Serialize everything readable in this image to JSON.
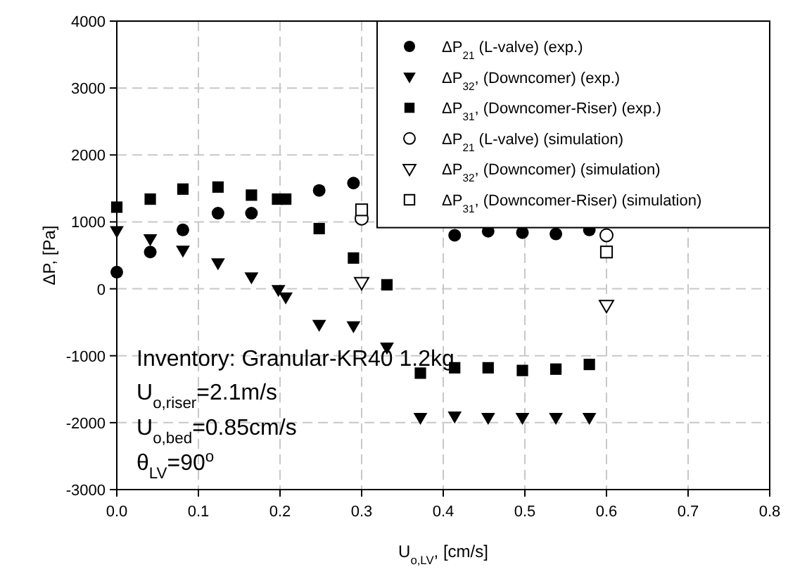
{
  "chart_data": {
    "type": "scatter",
    "xlabel": "U$_{o,LV}$, [cm/s]",
    "ylabel": "ΔP, [Pa]",
    "xlim": [
      0,
      0.8
    ],
    "xticks": [
      {
        "value": 0,
        "label": "0.0"
      },
      0.1,
      0.2,
      0.3,
      0.4,
      0.5,
      0.6,
      0.7,
      0.8
    ],
    "ylim": [
      -3000,
      4000
    ],
    "yticks": [
      -3000,
      -2000,
      -1000,
      0,
      1000,
      2000,
      3000,
      4000
    ],
    "grid": true,
    "legend": "top right",
    "annotations": [
      "Inventory: Granular-KR40 1.2kg",
      "U$_{o,riser}$=2.1m/s",
      "U$_{o,bed}$=0.85cm/s",
      "θ$_{LV}$=90$^{o}$"
    ],
    "series": [
      {
        "name": "ΔP$_{21}$ (L-valve) (exp.)",
        "color": "#000000",
        "marker": "circle",
        "x": [
          0,
          0.041,
          0.081,
          0.124,
          0.165,
          0.248,
          0.29,
          0.414,
          0.455,
          0.497,
          0.538,
          0.579
        ],
        "values": [
          250,
          550,
          880,
          1130,
          1130,
          1470,
          1580,
          800,
          860,
          840,
          820,
          880
        ]
      },
      {
        "name": "ΔP$_{32}$, (Downcomer) (exp.)",
        "color": "#000000",
        "marker": "triangle",
        "x": [
          0,
          0.041,
          0.081,
          0.124,
          0.165,
          0.198,
          0.207,
          0.248,
          0.29,
          0.331,
          0.372,
          0.414,
          0.455,
          0.497,
          0.538,
          0.579
        ],
        "values": [
          860,
          740,
          570,
          380,
          170,
          -20,
          -130,
          -540,
          -560,
          -880,
          -1930,
          -1910,
          -1930,
          -1930,
          -1930,
          -1930
        ]
      },
      {
        "name": "ΔP$_{31}$, (Downcomer-Riser) (exp.)",
        "color": "#000000",
        "marker": "square",
        "x": [
          0,
          0.041,
          0.081,
          0.124,
          0.165,
          0.197,
          0.207,
          0.248,
          0.29,
          0.331,
          0.372,
          0.414,
          0.455,
          0.497,
          0.538,
          0.579
        ],
        "values": [
          1220,
          1340,
          1490,
          1520,
          1400,
          1340,
          1340,
          900,
          460,
          60,
          -1260,
          -1180,
          -1180,
          -1220,
          -1200,
          -1130
        ]
      },
      {
        "name": "ΔP$_{21}$ (L-valve) (simulation)",
        "color": "#000000",
        "marker": "circle-open",
        "x": [
          0.3,
          0.6
        ],
        "values": [
          1050,
          800
        ]
      },
      {
        "name": "ΔP$_{32}$, (Downcomer) (simulation)",
        "color": "#000000",
        "marker": "triangle-open",
        "x": [
          0.3,
          0.6
        ],
        "values": [
          90,
          -250
        ]
      },
      {
        "name": "ΔP$_{31}$, (Downcomer-Riser) (simulation)",
        "color": "#000000",
        "marker": "square-open",
        "x": [
          0.3,
          0.6
        ],
        "values": [
          1180,
          550
        ]
      }
    ]
  }
}
